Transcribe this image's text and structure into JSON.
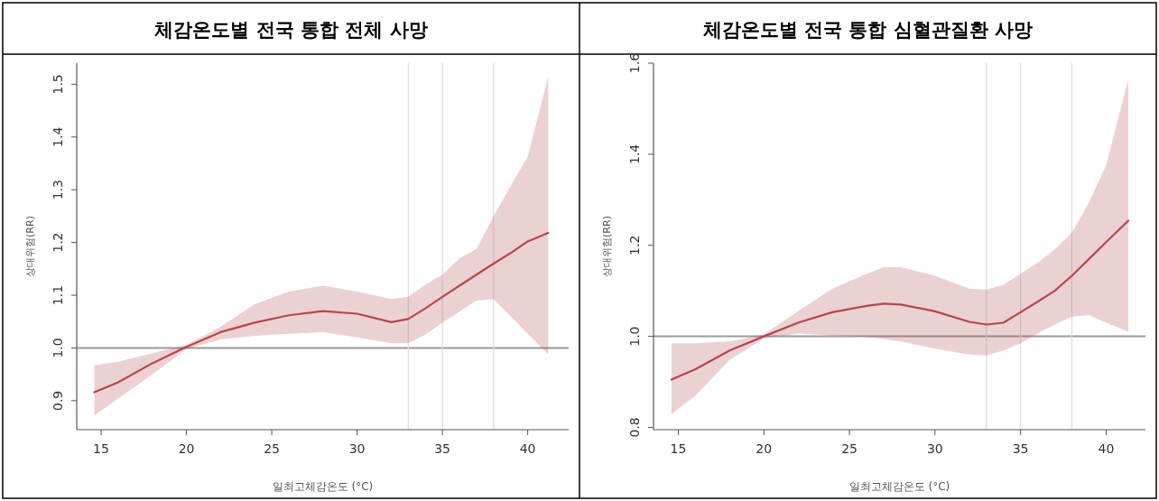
{
  "chart_data": [
    {
      "type": "line",
      "title": "체감온도별 전국 통합 전체 사망",
      "xlabel": "일최고체감온도 (°C)",
      "ylabel": "상대위험(RR)",
      "xlim": [
        13.57,
        42.4
      ],
      "ylim": [
        0.845,
        1.54
      ],
      "xticks": [
        15,
        20,
        25,
        30,
        35,
        40
      ],
      "yticks": [
        0.9,
        {
          "value": 1.0,
          "label": "1.0"
        },
        1.1,
        1.2,
        1.3,
        1.4,
        1.5
      ],
      "x": [
        14.6,
        16,
        18,
        20,
        22,
        24,
        26,
        28,
        30,
        32,
        33,
        34,
        35,
        36,
        37,
        38,
        39,
        40,
        41.2
      ],
      "series": [
        {
          "color": "#b5474f",
          "values": [
            0.916,
            0.935,
            0.971,
            1.002,
            1.03,
            1.048,
            1.062,
            1.07,
            1.065,
            1.049,
            1.055,
            1.075,
            1.097,
            1.118,
            1.139,
            1.16,
            1.18,
            1.202,
            1.218
          ],
          "lower": [
            0.872,
            0.904,
            0.95,
            0.998,
            1.016,
            1.023,
            1.027,
            1.03,
            1.02,
            1.009,
            1.009,
            1.025,
            1.048,
            1.069,
            1.09,
            1.093,
            1.06,
            1.027,
            0.988
          ],
          "upper": [
            0.967,
            0.974,
            0.99,
            1.006,
            1.04,
            1.083,
            1.107,
            1.118,
            1.107,
            1.093,
            1.097,
            1.12,
            1.139,
            1.17,
            1.188,
            1.25,
            1.307,
            1.363,
            1.514
          ]
        }
      ],
      "ref_lines": [
        {
          "axis": "y",
          "value": 1.0,
          "color": "#9a9a9a"
        },
        {
          "axis": "x",
          "value": 33,
          "color": "#dcdcdc"
        },
        {
          "axis": "x",
          "value": 35,
          "color": "#dcdcdc"
        },
        {
          "axis": "x",
          "value": 38,
          "color": "#dcdcdc"
        }
      ]
    },
    {
      "type": "line",
      "title": "체감온도별 전국 통합 심혈관질환 사망",
      "xlabel": "일최고체감온도 (°C)",
      "ylabel": "상대위험(RR)",
      "xlim": [
        13.55,
        42.3
      ],
      "ylim": [
        0.795,
        1.6
      ],
      "xticks": [
        15,
        20,
        25,
        30,
        35,
        40
      ],
      "yticks": [
        0.8,
        {
          "value": 1.0,
          "label": "1.0"
        },
        1.2,
        1.4,
        1.6
      ],
      "x": [
        14.6,
        16,
        18,
        20,
        22,
        24,
        26,
        27,
        28,
        30,
        32,
        33,
        34,
        35,
        36,
        37,
        38,
        39,
        40,
        41.3
      ],
      "series": [
        {
          "color": "#b5474f",
          "values": [
            0.905,
            0.928,
            0.969,
            1.0,
            1.03,
            1.053,
            1.067,
            1.072,
            1.07,
            1.055,
            1.032,
            1.026,
            1.03,
            1.053,
            1.076,
            1.1,
            1.133,
            1.17,
            1.207,
            1.254
          ],
          "lower": [
            0.829,
            0.87,
            0.948,
            0.996,
            1.006,
            1.002,
            0.999,
            0.994,
            0.989,
            0.973,
            0.96,
            0.958,
            0.969,
            0.985,
            1.006,
            1.026,
            1.043,
            1.047,
            1.03,
            1.01
          ],
          "upper": [
            0.985,
            0.985,
            0.989,
            1.004,
            1.055,
            1.105,
            1.137,
            1.152,
            1.152,
            1.133,
            1.105,
            1.103,
            1.113,
            1.137,
            1.162,
            1.191,
            1.228,
            1.294,
            1.376,
            1.565
          ]
        }
      ],
      "ref_lines": [
        {
          "axis": "y",
          "value": 1.0,
          "color": "#9a9a9a"
        },
        {
          "axis": "x",
          "value": 33,
          "color": "#dcdcdc"
        },
        {
          "axis": "x",
          "value": 35,
          "color": "#dcdcdc"
        },
        {
          "axis": "x",
          "value": 38,
          "color": "#dcdcdc"
        }
      ]
    }
  ]
}
